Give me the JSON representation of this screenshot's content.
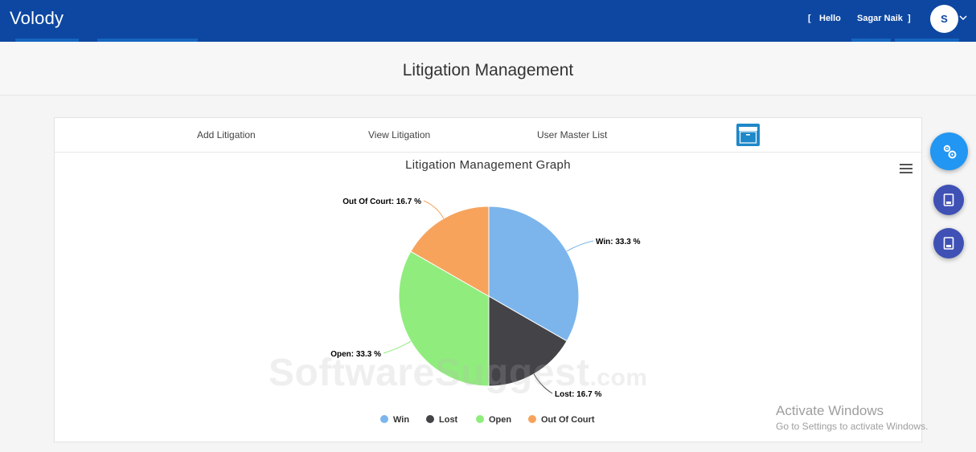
{
  "app": {
    "brand": "Volody"
  },
  "header": {
    "greeting_open": "[",
    "greeting_hello": "Hello",
    "user_name": "Sagar Naik",
    "greeting_close": "]",
    "avatar_initial": "S"
  },
  "page": {
    "title": "Litigation Management"
  },
  "nav": {
    "add": "Add Litigation",
    "view": "View Litigation",
    "user_master": "User Master List"
  },
  "chart_data": {
    "type": "pie",
    "title": "Litigation Management Graph",
    "categories": [
      "Win",
      "Lost",
      "Open",
      "Out Of Court"
    ],
    "values": [
      33.3,
      16.7,
      33.3,
      16.7
    ],
    "labels": [
      "Win: 33.3 %",
      "Lost: 16.7 %",
      "Open: 33.3 %",
      "Out Of Court: 16.7 %"
    ],
    "colors": [
      "#7cb5ec",
      "#434348",
      "#90ed7d",
      "#f7a35c"
    ],
    "legend_position": "bottom-center"
  },
  "watermark": {
    "main": "SoftwareSuggest",
    "suffix": ".com"
  },
  "os_notice": {
    "line1": "Activate Windows",
    "line2": "Go to Settings to activate Windows."
  },
  "colors": {
    "header": "#0d47a1",
    "fab_primary": "#2196f3",
    "fab_secondary": "#3f51b5"
  }
}
